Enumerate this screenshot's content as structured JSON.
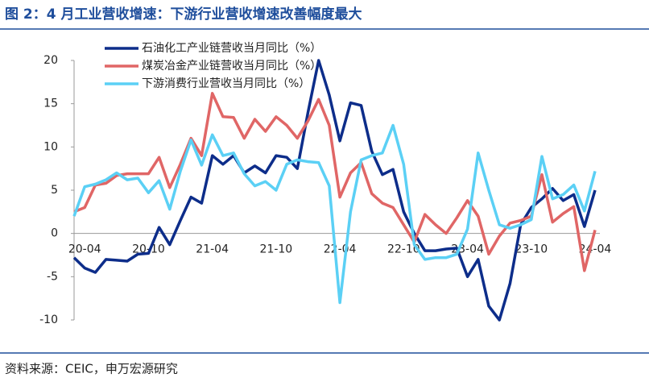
{
  "chart_data": {
    "type": "line",
    "title": "图 2：4 月工业营收增速：下游行业营收增速改善幅度最大",
    "source": "资料来源：CEIC，申万宏源研究",
    "categories": [
      null,
      "20-04",
      null,
      null,
      null,
      null,
      null,
      "20-10",
      null,
      null,
      null,
      null,
      null,
      "21-04",
      null,
      null,
      null,
      null,
      null,
      "21-10",
      null,
      null,
      null,
      null,
      null,
      "22-04",
      null,
      null,
      null,
      null,
      null,
      "22-10",
      null,
      null,
      null,
      null,
      null,
      "23-04",
      null,
      null,
      null,
      null,
      null,
      "23-10",
      null,
      null,
      null,
      null,
      null,
      "24-04"
    ],
    "series": [
      {
        "name": "石油化工产业链营收当月同比（%）",
        "color": "#0d2d8a",
        "values": [
          -2.8,
          -4,
          -4.5,
          -3,
          -3.1,
          -3.2,
          -2.4,
          -2.3,
          0.7,
          -1.3,
          1.5,
          4.2,
          3.5,
          9,
          8,
          9,
          7,
          7.8,
          7,
          9,
          8.8,
          7.5,
          14,
          20,
          16,
          10.7,
          15.1,
          14.8,
          9.5,
          6.8,
          7.4,
          2.5,
          0,
          -2,
          -2,
          -1.8,
          -1.7,
          -5,
          -3,
          -8.4,
          -10,
          -5.8,
          1,
          3,
          4,
          5.2,
          3.8,
          4.5,
          0.8,
          5
        ]
      },
      {
        "name": "煤炭冶金产业链营收当月同比（%）",
        "color": "#e06666",
        "values": [
          2.5,
          3,
          5.6,
          5.8,
          6.7,
          6.9,
          6.9,
          6.9,
          8.8,
          5.3,
          8,
          11,
          9,
          16.2,
          13.5,
          13.4,
          11,
          13.2,
          11.8,
          13.5,
          12.5,
          11,
          13,
          15.5,
          12.5,
          4.2,
          7,
          8.2,
          4.6,
          3.5,
          3,
          1,
          -1,
          2.2,
          1,
          0,
          1.8,
          3.8,
          2,
          -2.4,
          -0.3,
          1.2,
          1.5,
          2,
          6.8,
          1.3,
          2.3,
          3.1,
          -4.3,
          0.4
        ]
      },
      {
        "name": "下游消费行业营收当月同比（%）",
        "color": "#5bd0f5",
        "values": [
          2,
          5.4,
          5.7,
          6.2,
          7,
          6.2,
          6.4,
          4.7,
          6.1,
          2.8,
          7.2,
          10.8,
          7.9,
          11.4,
          9,
          9.3,
          6.9,
          5.5,
          6,
          5,
          8,
          8.5,
          8.3,
          8.2,
          5.5,
          -8,
          2.5,
          8.5,
          9,
          9.3,
          12.5,
          8,
          -1.3,
          -3,
          -2.8,
          -2.8,
          -2.4,
          0.5,
          9.3,
          5,
          1,
          0.6,
          1,
          1.6,
          8.9,
          4,
          4.5,
          5.6,
          2.6,
          7.2
        ]
      }
    ],
    "ylim": [
      -10,
      20
    ],
    "yticks": [
      20,
      15,
      10,
      5,
      0,
      -5,
      -10
    ]
  }
}
